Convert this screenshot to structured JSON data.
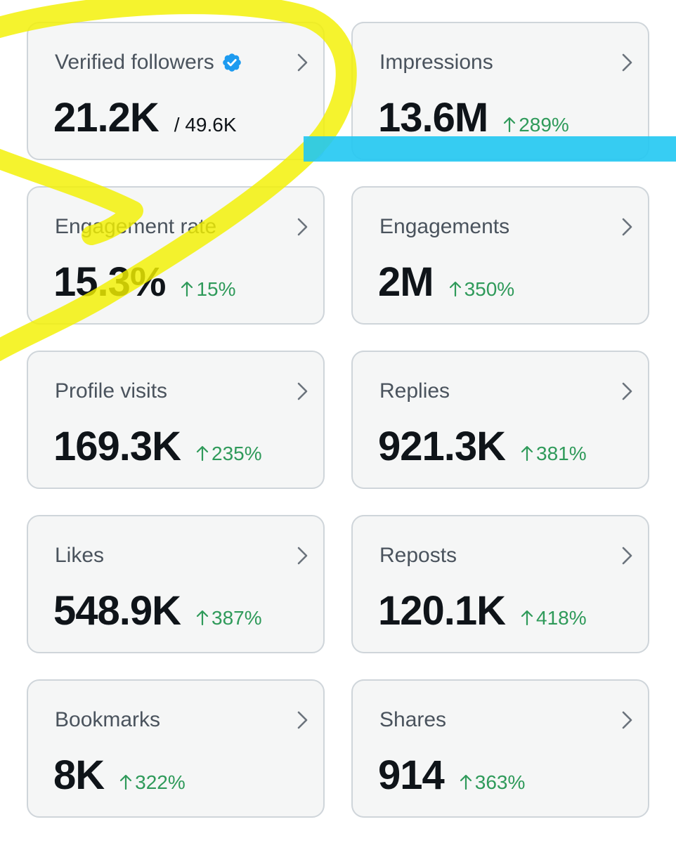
{
  "cards": [
    {
      "title": "Verified followers",
      "value": "21.2K",
      "secondary": "/ 49.6K",
      "delta": ""
    },
    {
      "title": "Impressions",
      "value": "13.6M",
      "secondary": "",
      "delta": "289%"
    },
    {
      "title": "Engagement rate",
      "value": "15.3%",
      "secondary": "",
      "delta": "15%"
    },
    {
      "title": "Engagements",
      "value": "2M",
      "secondary": "",
      "delta": "350%"
    },
    {
      "title": "Profile visits",
      "value": "169.3K",
      "secondary": "",
      "delta": "235%"
    },
    {
      "title": "Replies",
      "value": "921.3K",
      "secondary": "",
      "delta": "381%"
    },
    {
      "title": "Likes",
      "value": "548.9K",
      "secondary": "",
      "delta": "387%"
    },
    {
      "title": "Reposts",
      "value": "120.1K",
      "secondary": "",
      "delta": "418%"
    },
    {
      "title": "Bookmarks",
      "value": "8K",
      "secondary": "",
      "delta": "322%"
    },
    {
      "title": "Shares",
      "value": "914",
      "secondary": "",
      "delta": "363%"
    }
  ],
  "icons": {
    "chevron": "chevron-right-icon",
    "delta_arrow": "arrow-up-icon",
    "verified": "verified-badge-icon"
  },
  "colors": {
    "card_background": "#f5f6f6",
    "card_border": "#cfd5da",
    "positive_delta": "#2f9a5a",
    "verified_badge": "#1d9bf0",
    "yellow_highlight": "#f3f000",
    "blue_highlight": "#21c8f2"
  }
}
